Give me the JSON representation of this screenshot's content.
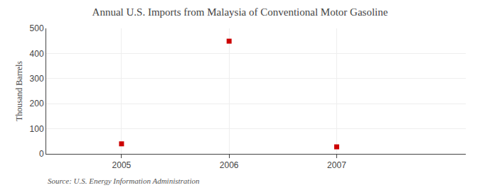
{
  "chart_data": {
    "type": "scatter",
    "title": "Annual U.S. Imports from Malaysia of Conventional Motor Gasoline",
    "ylabel": "Thousand Barrels",
    "annotations": [
      "Source: U.S. Energy Information Administration"
    ],
    "x": [
      2005,
      2006,
      2007
    ],
    "values": [
      40,
      449,
      28
    ],
    "color": "#cc0000",
    "marker": "square",
    "xlim": [
      2004.3,
      2008.2
    ],
    "ylim": [
      0,
      500
    ],
    "xticks": [
      2005,
      2006,
      2007
    ],
    "yticks": [
      0,
      100,
      200,
      300,
      400,
      500
    ],
    "grid": true
  }
}
